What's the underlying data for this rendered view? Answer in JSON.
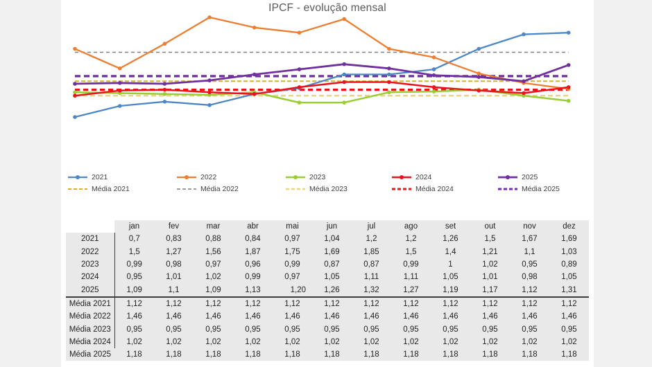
{
  "title": "IPCF - evolução mensal",
  "chart_data": {
    "type": "line",
    "title": "IPCF - evolução mensal",
    "x": [
      "jan",
      "fev",
      "mar",
      "abr",
      "mai",
      "jun",
      "jul",
      "ago",
      "set",
      "out",
      "nov",
      "dez"
    ],
    "series": [
      {
        "name": "2021",
        "style": "solid",
        "color": "#4e87c6",
        "width": 2.3,
        "values": [
          0.7,
          0.83,
          0.88,
          0.84,
          0.97,
          1.04,
          1.2,
          1.2,
          1.26,
          1.5,
          1.67,
          1.69
        ]
      },
      {
        "name": "2022",
        "style": "solid",
        "color": "#ed7d31",
        "width": 2.3,
        "values": [
          1.5,
          1.27,
          1.56,
          1.87,
          1.75,
          1.69,
          1.85,
          1.5,
          1.4,
          1.21,
          1.1,
          1.03
        ]
      },
      {
        "name": "2023",
        "style": "solid",
        "color": "#9acd32",
        "width": 2.5,
        "values": [
          0.99,
          0.98,
          0.97,
          0.96,
          0.99,
          0.87,
          0.87,
          0.99,
          1.0,
          1.02,
          0.95,
          0.89
        ]
      },
      {
        "name": "2024",
        "style": "solid",
        "color": "#e8141c",
        "width": 2.5,
        "values": [
          0.95,
          1.01,
          1.02,
          0.99,
          0.97,
          1.05,
          1.11,
          1.11,
          1.05,
          1.01,
          0.98,
          1.05
        ]
      },
      {
        "name": "2025",
        "style": "solid",
        "color": "#7030a0",
        "width": 2.8,
        "values": [
          1.09,
          1.1,
          1.09,
          1.13,
          1.2,
          1.26,
          1.32,
          1.27,
          1.19,
          1.17,
          1.12,
          1.31
        ]
      },
      {
        "name": "Média 2021",
        "style": "dashed",
        "color": "#d4b425",
        "width": 2.0,
        "dash": "6 3",
        "values": [
          1.12,
          1.12,
          1.12,
          1.12,
          1.12,
          1.12,
          1.12,
          1.12,
          1.12,
          1.12,
          1.12,
          1.12
        ]
      },
      {
        "name": "Média 2022",
        "style": "dashed",
        "color": "#7f7f7f",
        "width": 1.6,
        "dash": "5 4",
        "values": [
          1.46,
          1.46,
          1.46,
          1.46,
          1.46,
          1.46,
          1.46,
          1.46,
          1.46,
          1.46,
          1.46,
          1.46
        ]
      },
      {
        "name": "Média 2023",
        "style": "dashed",
        "color": "#e8d48b",
        "width": 2.6,
        "dash": "7 4",
        "values": [
          0.95,
          0.95,
          0.95,
          0.95,
          0.95,
          0.95,
          0.95,
          0.95,
          0.95,
          0.95,
          0.95,
          0.95
        ]
      },
      {
        "name": "Média 2024",
        "style": "dashed",
        "color": "#e8141c",
        "width": 3.2,
        "dash": "7 5",
        "values": [
          1.02,
          1.02,
          1.02,
          1.02,
          1.02,
          1.02,
          1.02,
          1.02,
          1.02,
          1.02,
          1.02,
          1.02
        ]
      },
      {
        "name": "Média 2025",
        "style": "dashed",
        "color": "#7030a0",
        "width": 3.4,
        "dash": "8 5",
        "values": [
          1.18,
          1.18,
          1.18,
          1.18,
          1.18,
          1.18,
          1.18,
          1.18,
          1.18,
          1.18,
          1.18,
          1.18
        ]
      }
    ],
    "ylim": [
      0.6,
      2.0
    ],
    "grid": false,
    "axes_visible": false,
    "legend_position": "bottom"
  },
  "table": {
    "corner": "",
    "columns": [
      "jan",
      "fev",
      "mar",
      "abr",
      "mai",
      "jun",
      "jul",
      "ago",
      "set",
      "out",
      "nov",
      "dez"
    ],
    "rows": [
      {
        "label": "2021",
        "values": [
          "0,7",
          "0,83",
          "0,88",
          "0,84",
          "0,97",
          "1,04",
          "1,2",
          "1,2",
          "1,26",
          "1,5",
          "1,67",
          "1,69"
        ]
      },
      {
        "label": "2022",
        "values": [
          "1,5",
          "1,27",
          "1,56",
          "1,87",
          "1,75",
          "1,69",
          "1,85",
          "1,5",
          "1,4",
          "1,21",
          "1,1",
          "1,03"
        ]
      },
      {
        "label": "2023",
        "values": [
          "0,99",
          "0,98",
          "0,97",
          "0,96",
          "0,99",
          "0,87",
          "0,87",
          "0,99",
          "1",
          "1,02",
          "0,95",
          "0,89"
        ]
      },
      {
        "label": "2024",
        "values": [
          "0,95",
          "1,01",
          "1,02",
          "0,99",
          "0,97",
          "1,05",
          "1,11",
          "1,11",
          "1,05",
          "1,01",
          "0,98",
          "1,05"
        ]
      },
      {
        "label": "2025",
        "values": [
          "1,09",
          "1,1",
          "1,09",
          "1,13",
          "1,20",
          "1,26",
          "1,32",
          "1,27",
          "1,19",
          "1,17",
          "1,12",
          "1,31"
        ]
      },
      {
        "label": "Média 2021",
        "values": [
          "1,12",
          "1,12",
          "1,12",
          "1,12",
          "1,12",
          "1,12",
          "1,12",
          "1,12",
          "1,12",
          "1,12",
          "1,12",
          "1,12"
        ]
      },
      {
        "label": "Média 2022",
        "values": [
          "1,46",
          "1,46",
          "1,46",
          "1,46",
          "1,46",
          "1,46",
          "1,46",
          "1,46",
          "1,46",
          "1,46",
          "1,46",
          "1,46"
        ]
      },
      {
        "label": "Média 2023",
        "values": [
          "0,95",
          "0,95",
          "0,95",
          "0,95",
          "0,95",
          "0,95",
          "0,95",
          "0,95",
          "0,95",
          "0,95",
          "0,95",
          "0,95"
        ]
      },
      {
        "label": "Média 2024",
        "values": [
          "1,02",
          "1,02",
          "1,02",
          "1,02",
          "1,02",
          "1,02",
          "1,02",
          "1,02",
          "1,02",
          "1,02",
          "1,02",
          "1,02"
        ]
      },
      {
        "label": "Média 2025",
        "values": [
          "1,18",
          "1,18",
          "1,18",
          "1,18",
          "1,18",
          "1,18",
          "1,18",
          "1,18",
          "1,18",
          "1,18",
          "1,18",
          "1,18"
        ]
      }
    ],
    "right_aligned_cells": [
      [
        4,
        4
      ]
    ]
  }
}
